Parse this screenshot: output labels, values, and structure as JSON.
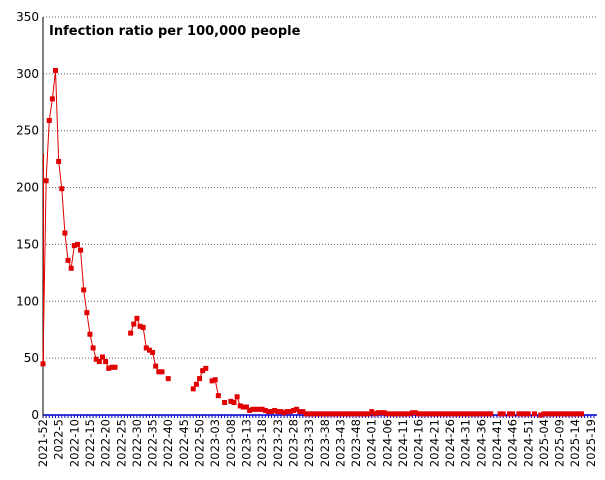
{
  "chart_data": {
    "type": "line",
    "title": "Infection ratio per 100,000 people",
    "xlabel": "",
    "ylabel": "",
    "ylim": [
      0,
      350
    ],
    "yticks": [
      0,
      50,
      100,
      150,
      200,
      250,
      300,
      350
    ],
    "grid": {
      "horizontal": true,
      "style": "dashed",
      "vertical": false
    },
    "colors": {
      "series": "#e00000",
      "axis": "#000000",
      "baseline": "#0000cc",
      "grid": "#666666"
    },
    "x_tick_labels": [
      "2021-52",
      "2022-5",
      "2022-10",
      "2022-15",
      "2022-20",
      "2022-25",
      "2022-30",
      "2022-35",
      "2022-40",
      "2022-45",
      "2022-50",
      "2023-03",
      "2023-08",
      "2023-13",
      "2023-18",
      "2023-23",
      "2023-28",
      "2023-33",
      "2023-38",
      "2023-43",
      "2023-48",
      "2024-01",
      "2024-06",
      "2024-11",
      "2024-16",
      "2024-21",
      "2024-26",
      "2024-31",
      "2024-36",
      "2024-41",
      "2024-46",
      "2024-51",
      "2025-04",
      "2025-09",
      "2025-14",
      "2025-19"
    ],
    "x_week_count": 177,
    "series": [
      {
        "points": [
          [
            0,
            45
          ],
          [
            1,
            206
          ],
          [
            2,
            259
          ],
          [
            3,
            278
          ],
          [
            4,
            303
          ],
          [
            5,
            223
          ],
          [
            6,
            199
          ],
          [
            7,
            160
          ],
          [
            8,
            136
          ],
          [
            9,
            129
          ],
          [
            10,
            149
          ],
          [
            11,
            150
          ],
          [
            12,
            145
          ],
          [
            13,
            110
          ],
          [
            14,
            90
          ],
          [
            15,
            71
          ],
          [
            16,
            59
          ],
          [
            17,
            49
          ],
          [
            18,
            47
          ],
          [
            19,
            51
          ],
          [
            20,
            47
          ],
          [
            21,
            41
          ],
          [
            22,
            42
          ],
          [
            23,
            42
          ],
          [
            28,
            72
          ],
          [
            29,
            80
          ],
          [
            30,
            85
          ],
          [
            31,
            78
          ],
          [
            32,
            77
          ],
          [
            33,
            59
          ],
          [
            34,
            57
          ],
          [
            35,
            55
          ],
          [
            36,
            43
          ],
          [
            37,
            38
          ],
          [
            38,
            38
          ],
          [
            40,
            32
          ],
          [
            48,
            23
          ],
          [
            49,
            27
          ],
          [
            50,
            32
          ],
          [
            51,
            39
          ],
          [
            52,
            41
          ],
          [
            54,
            30
          ],
          [
            55,
            31
          ],
          [
            56,
            17
          ],
          [
            58,
            11
          ],
          [
            60,
            12
          ],
          [
            61,
            11
          ],
          [
            62,
            16
          ],
          [
            63,
            8
          ],
          [
            64,
            7
          ],
          [
            65,
            7
          ],
          [
            66,
            4
          ],
          [
            67,
            5
          ],
          [
            68,
            5
          ],
          [
            69,
            5
          ],
          [
            70,
            5
          ],
          [
            71,
            4
          ],
          [
            72,
            3
          ],
          [
            73,
            3
          ],
          [
            74,
            4
          ],
          [
            75,
            3
          ],
          [
            76,
            3
          ],
          [
            77,
            2
          ],
          [
            78,
            3
          ],
          [
            79,
            3
          ],
          [
            80,
            4
          ],
          [
            81,
            5
          ],
          [
            82,
            3
          ],
          [
            83,
            3
          ],
          [
            84,
            1
          ],
          [
            85,
            1
          ],
          [
            86,
            1
          ],
          [
            87,
            1
          ],
          [
            88,
            1
          ],
          [
            89,
            1
          ],
          [
            90,
            1
          ],
          [
            91,
            1
          ],
          [
            92,
            1
          ],
          [
            93,
            1
          ],
          [
            94,
            1
          ],
          [
            95,
            1
          ],
          [
            96,
            1
          ],
          [
            97,
            1
          ],
          [
            98,
            1
          ],
          [
            99,
            1
          ],
          [
            100,
            1
          ],
          [
            101,
            1
          ],
          [
            102,
            1
          ],
          [
            103,
            1
          ],
          [
            104,
            1
          ],
          [
            105,
            3
          ],
          [
            106,
            1
          ],
          [
            107,
            2
          ],
          [
            108,
            2
          ],
          [
            109,
            2
          ],
          [
            110,
            1
          ],
          [
            111,
            1
          ],
          [
            112,
            1
          ],
          [
            113,
            1
          ],
          [
            114,
            1
          ],
          [
            115,
            1
          ],
          [
            116,
            1
          ],
          [
            117,
            1
          ],
          [
            118,
            2
          ],
          [
            119,
            2
          ],
          [
            120,
            1
          ],
          [
            121,
            1
          ],
          [
            122,
            1
          ],
          [
            123,
            1
          ],
          [
            124,
            1
          ],
          [
            125,
            1
          ],
          [
            126,
            1
          ],
          [
            127,
            1
          ],
          [
            128,
            1
          ],
          [
            129,
            1
          ],
          [
            130,
            1
          ],
          [
            131,
            1
          ],
          [
            132,
            1
          ],
          [
            133,
            1
          ],
          [
            134,
            1
          ],
          [
            135,
            1
          ],
          [
            136,
            1
          ],
          [
            137,
            1
          ],
          [
            138,
            1
          ],
          [
            139,
            1
          ],
          [
            140,
            1
          ],
          [
            141,
            1
          ],
          [
            142,
            1
          ],
          [
            143,
            1
          ],
          [
            146,
            1
          ],
          [
            147,
            1
          ],
          [
            149,
            1
          ],
          [
            150,
            1
          ],
          [
            152,
            1
          ],
          [
            153,
            1
          ],
          [
            154,
            1
          ],
          [
            155,
            1
          ],
          [
            157,
            1
          ],
          [
            159,
            0
          ],
          [
            160,
            1
          ],
          [
            161,
            1
          ],
          [
            162,
            1
          ],
          [
            163,
            1
          ],
          [
            164,
            1
          ],
          [
            165,
            1
          ],
          [
            166,
            1
          ],
          [
            167,
            1
          ],
          [
            168,
            1
          ],
          [
            169,
            1
          ],
          [
            170,
            1
          ],
          [
            171,
            1
          ],
          [
            172,
            1
          ]
        ]
      }
    ]
  }
}
